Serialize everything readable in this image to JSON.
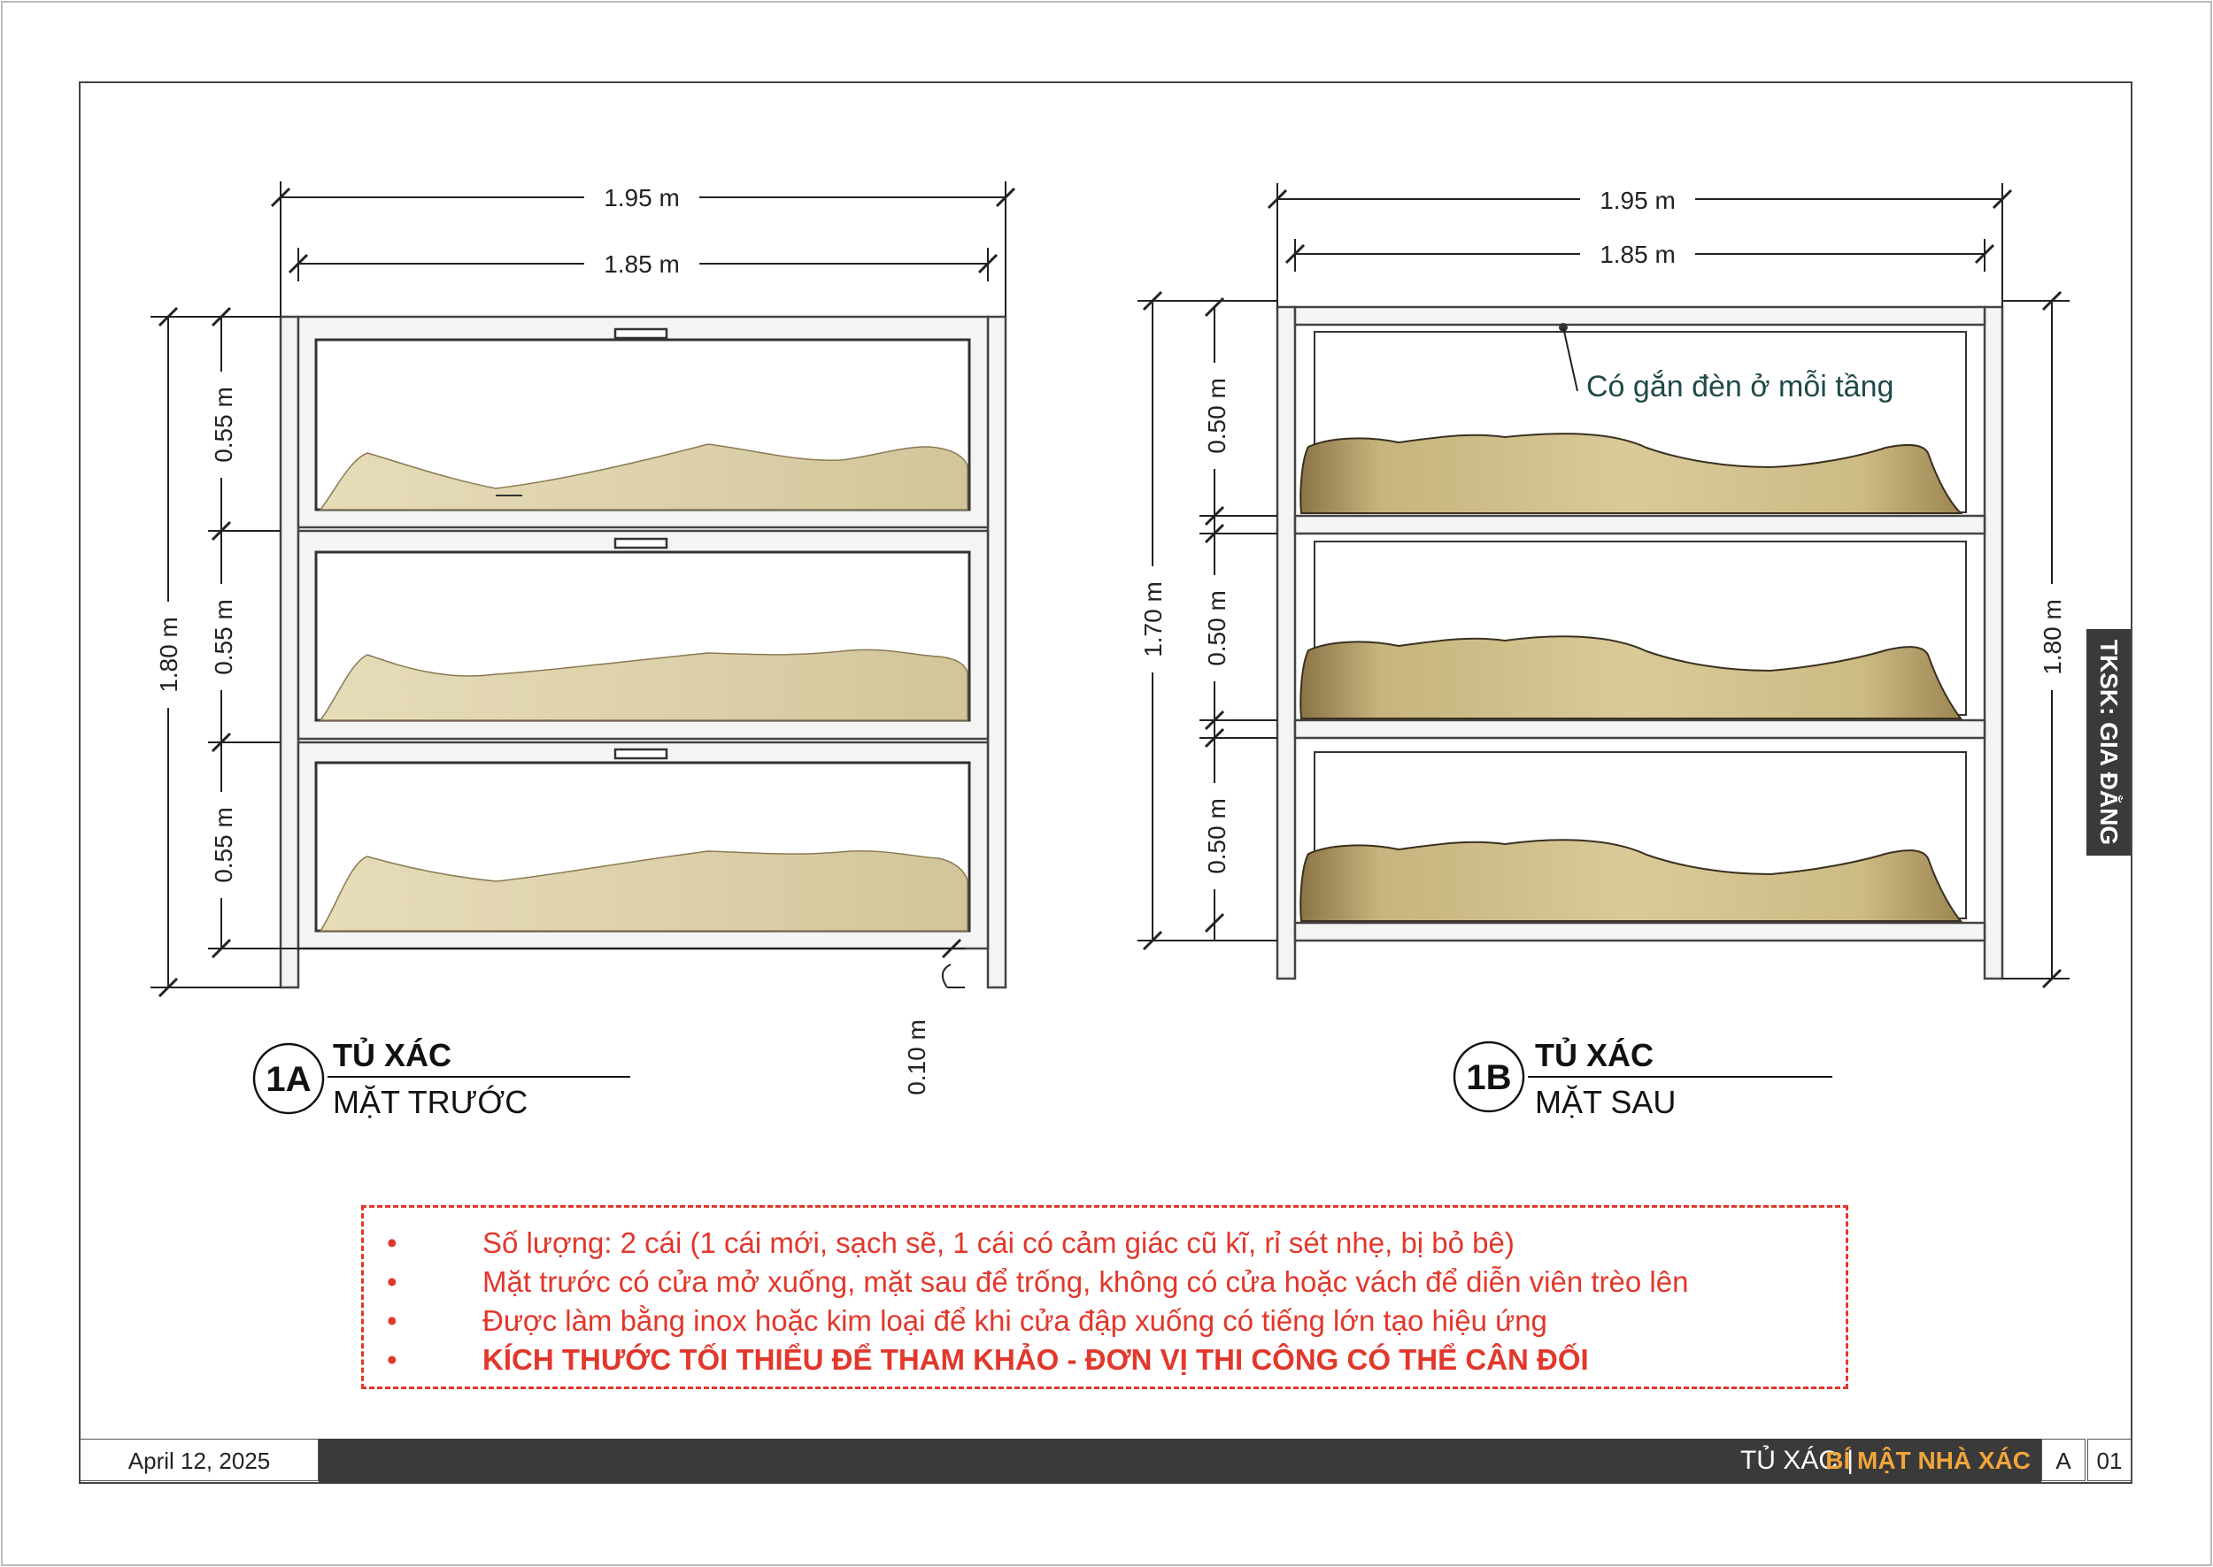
{
  "drawing_1a": {
    "overall_width": "1.95 m",
    "inner_width": "1.85 m",
    "overall_height": "1.80 m",
    "tier_heights": [
      "0.55 m",
      "0.55 m",
      "0.55 m"
    ],
    "leg_height": "0.10 m",
    "badge": "1A",
    "title": "TỦ XÁC",
    "subtitle": "MẶT TRƯỚC"
  },
  "drawing_1b": {
    "overall_width": "1.95 m",
    "inner_width": "1.85 m",
    "inner_height": "1.70 m",
    "overall_height": "1.80 m",
    "tier_heights": [
      "0.50 m",
      "0.50 m",
      "0.50 m"
    ],
    "note": "Có gắn đèn ở mỗi tầng",
    "badge": "1B",
    "title": "TỦ XÁC",
    "subtitle": "MẶT SAU"
  },
  "notes": [
    {
      "bullet": "•",
      "text": "Số lượng: 2 cái (1 cái mới, sạch sẽ, 1 cái có cảm giác cũ kĩ, rỉ sét nhẹ, bị bỏ bê)",
      "emphasis": false
    },
    {
      "bullet": "•",
      "text": "Mặt trước có cửa mở xuống, mặt sau để trống, không có cửa hoặc vách để diễn viên trèo lên",
      "emphasis": false
    },
    {
      "bullet": "•",
      "text": "Được làm bằng inox hoặc kim loại để khi cửa đập xuống có tiếng lớn tạo hiệu ứng",
      "emphasis": false
    },
    {
      "bullet": "•",
      "text": "KÍCH THƯỚC TỐI THIỂU ĐỂ THAM KHẢO - ĐƠN VỊ THI CÔNG CÓ THỂ CÂN ĐỐI",
      "emphasis": true
    }
  ],
  "footer": {
    "date": "April 12, 2025",
    "sheet_title": "TỦ XÁC",
    "separator": "|",
    "project": "BÍ MẬT NHÀ XÁC",
    "sheet_letter": "A",
    "sheet_number": "01"
  },
  "side_tab": "TKSK: GIA ĐẰNG",
  "colors": {
    "notes_red": "#e2372b",
    "footer_bar": "#3a3a3a",
    "project_orange": "#f2a53a",
    "frame_fill": "#f4f4f4",
    "body_fill": "#ddd0a4",
    "note_teal": "#1f4a48"
  }
}
